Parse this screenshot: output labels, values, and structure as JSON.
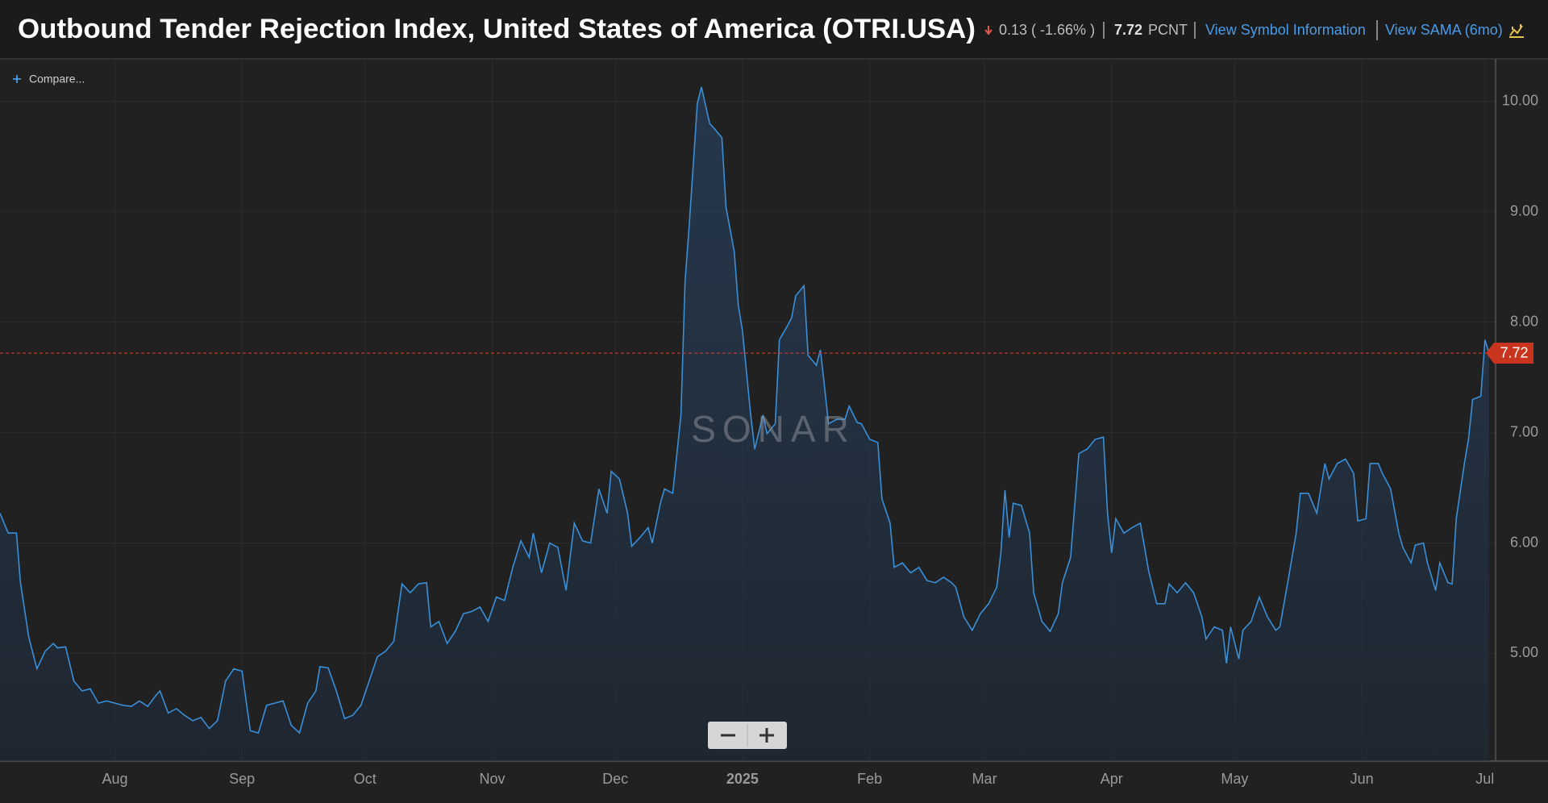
{
  "header": {
    "title": "Outbound Tender Rejection Index, United States of America (OTRI.USA)",
    "change": "0.13 ( -1.66% )",
    "price": "7.72",
    "unit": "PCNT",
    "link_info": "View Symbol Information",
    "link_sama": "View SAMA (6mo)"
  },
  "compare": "Compare...",
  "watermark": "SONAR",
  "chart_data": {
    "type": "area",
    "x": [
      0,
      2,
      4,
      5,
      7,
      9,
      11,
      13,
      14,
      16,
      18,
      20,
      22,
      24,
      26,
      28,
      30,
      32,
      34,
      36,
      38,
      39,
      41,
      43,
      45,
      47,
      49,
      51,
      53,
      55,
      57,
      59,
      61,
      63,
      65,
      67,
      69,
      71,
      73,
      75,
      77,
      78,
      80,
      82,
      84,
      86,
      88,
      90,
      92,
      94,
      96,
      98,
      100,
      102,
      104,
      105,
      107,
      109,
      111,
      113,
      115,
      117,
      119,
      121,
      123,
      125,
      127,
      129,
      130,
      132,
      134,
      136,
      138,
      140,
      142,
      144,
      146,
      148,
      149,
      151,
      153,
      154,
      156,
      158,
      159,
      161,
      162,
      164,
      166,
      167,
      168,
      170,
      171,
      173,
      174,
      176,
      177,
      179,
      180,
      181,
      183,
      184,
      186,
      187,
      189,
      190,
      192,
      193,
      194,
      196,
      197,
      199,
      200,
      202,
      204,
      206,
      207,
      209,
      210,
      212,
      214,
      215,
      217,
      218,
      220,
      222,
      224,
      226,
      228,
      230,
      232,
      233,
      235,
      237,
      239,
      241,
      243,
      244,
      245,
      246,
      247,
      249,
      251,
      252,
      254,
      256,
      258,
      259,
      261,
      263,
      265,
      267,
      269,
      270,
      271,
      272,
      274,
      276,
      278,
      280,
      282,
      284,
      285,
      287,
      289,
      291,
      293,
      294,
      296,
      298,
      299,
      300,
      302,
      303,
      305,
      307,
      309,
      311,
      312,
      314,
      316,
      317,
      319,
      321,
      323,
      324,
      326,
      328,
      330,
      331,
      333,
      334,
      336,
      337,
      339,
      341,
      342,
      344,
      345,
      347,
      348,
      350,
      351,
      353,
      354,
      355,
      357,
      358,
      359,
      361,
      362,
      363
    ],
    "series": [
      {
        "name": "OTRI.USA",
        "color": "#3a8fd9",
        "values": [
          6.27,
          6.09,
          6.09,
          5.64,
          5.15,
          4.86,
          5.02,
          5.09,
          5.05,
          5.06,
          4.75,
          4.66,
          4.68,
          4.55,
          4.57,
          4.55,
          4.53,
          4.52,
          4.57,
          4.52,
          4.62,
          4.66,
          4.46,
          4.5,
          4.44,
          4.39,
          4.42,
          4.32,
          4.39,
          4.75,
          4.86,
          4.84,
          4.3,
          4.28,
          4.53,
          4.55,
          4.57,
          4.35,
          4.28,
          4.55,
          4.66,
          4.88,
          4.87,
          4.66,
          4.41,
          4.44,
          4.53,
          4.75,
          4.97,
          5.02,
          5.11,
          5.63,
          5.55,
          5.63,
          5.64,
          5.24,
          5.29,
          5.09,
          5.2,
          5.36,
          5.38,
          5.42,
          5.29,
          5.51,
          5.48,
          5.78,
          6.02,
          5.87,
          6.09,
          5.73,
          6.0,
          5.96,
          5.57,
          6.18,
          6.02,
          6.0,
          6.49,
          6.27,
          6.65,
          6.58,
          6.27,
          5.97,
          6.05,
          6.14,
          6.0,
          6.36,
          6.49,
          6.45,
          7.16,
          8.37,
          8.86,
          9.98,
          10.13,
          9.8,
          9.76,
          9.67,
          9.04,
          8.64,
          8.15,
          7.92,
          7.16,
          6.85,
          7.16,
          6.99,
          7.08,
          7.84,
          7.97,
          8.04,
          8.24,
          8.33,
          7.7,
          7.61,
          7.75,
          7.08,
          7.12,
          7.12,
          7.24,
          7.09,
          7.08,
          6.94,
          6.91,
          6.4,
          6.18,
          5.78,
          5.82,
          5.73,
          5.78,
          5.66,
          5.64,
          5.69,
          5.64,
          5.6,
          5.33,
          5.21,
          5.36,
          5.45,
          5.6,
          5.91,
          6.48,
          6.05,
          6.36,
          6.34,
          6.09,
          5.55,
          5.29,
          5.2,
          5.36,
          5.64,
          5.87,
          6.81,
          6.85,
          6.94,
          6.96,
          6.27,
          5.91,
          6.22,
          6.09,
          6.14,
          6.18,
          5.75,
          5.45,
          5.45,
          5.63,
          5.55,
          5.64,
          5.55,
          5.33,
          5.13,
          5.24,
          5.21,
          4.91,
          5.24,
          4.95,
          5.21,
          5.29,
          5.51,
          5.33,
          5.21,
          5.24,
          5.66,
          6.09,
          6.45,
          6.45,
          6.27,
          6.72,
          6.58,
          6.72,
          6.76,
          6.63,
          6.2,
          6.22,
          6.72,
          6.72,
          6.63,
          6.49,
          6.09,
          5.96,
          5.82,
          5.98,
          6.0,
          5.82,
          5.57,
          5.82,
          5.64,
          5.63,
          6.22,
          6.72,
          6.94,
          7.3,
          7.33,
          7.84,
          7.72
        ]
      }
    ],
    "last_value_label": "7.72",
    "xlim": [
      0,
      364.6
    ],
    "xticks": [
      {
        "value": 28,
        "label": "Aug"
      },
      {
        "value": 59,
        "label": "Sep"
      },
      {
        "value": 89,
        "label": "Oct"
      },
      {
        "value": 120,
        "label": "Nov"
      },
      {
        "value": 150,
        "label": "Dec"
      },
      {
        "value": 181,
        "label": "2025"
      },
      {
        "value": 212,
        "label": "Feb"
      },
      {
        "value": 240,
        "label": "Mar"
      },
      {
        "value": 271,
        "label": "Apr"
      },
      {
        "value": 301,
        "label": "May"
      },
      {
        "value": 332,
        "label": "Jun"
      },
      {
        "value": 362,
        "label": "Jul"
      }
    ],
    "ylim": [
      4.025,
      10.385
    ],
    "yticks": [
      {
        "value": 5,
        "label": "5.00"
      },
      {
        "value": 6,
        "label": "6.00"
      },
      {
        "value": 7,
        "label": "7.00"
      },
      {
        "value": 8,
        "label": "8.00"
      },
      {
        "value": 9,
        "label": "9.00"
      },
      {
        "value": 10,
        "label": "10.00"
      }
    ],
    "grid": true
  }
}
